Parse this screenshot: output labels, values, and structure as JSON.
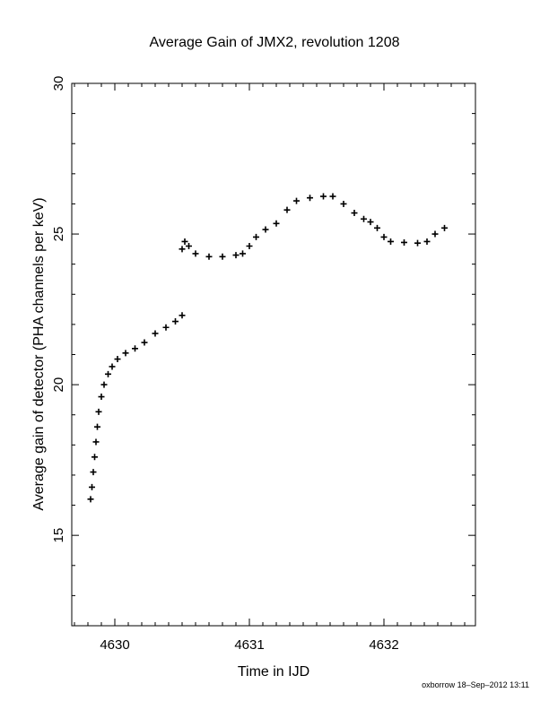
{
  "chart_data": {
    "type": "scatter",
    "title": "Average Gain of JMX2, revolution 1208",
    "xlabel": "Time in IJD",
    "ylabel": "Average gain of detector (PHA channels per keV)",
    "xlim": [
      4629.68,
      4632.68
    ],
    "ylim": [
      12,
      30
    ],
    "xticks": [
      4630,
      4631,
      4632
    ],
    "yticks": [
      15,
      20,
      25,
      30
    ],
    "marker": "plus",
    "grid": false,
    "series": [
      {
        "points": [
          [
            4629.82,
            16.2
          ],
          [
            4629.83,
            16.6
          ],
          [
            4629.84,
            17.1
          ],
          [
            4629.85,
            17.6
          ],
          [
            4629.86,
            18.1
          ],
          [
            4629.87,
            18.6
          ],
          [
            4629.88,
            19.1
          ],
          [
            4629.9,
            19.6
          ],
          [
            4629.92,
            20.0
          ],
          [
            4629.95,
            20.35
          ],
          [
            4629.98,
            20.6
          ],
          [
            4630.02,
            20.85
          ],
          [
            4630.08,
            21.05
          ],
          [
            4630.15,
            21.2
          ],
          [
            4630.22,
            21.4
          ],
          [
            4630.3,
            21.7
          ],
          [
            4630.38,
            21.9
          ],
          [
            4630.45,
            22.1
          ],
          [
            4630.5,
            22.3
          ],
          [
            4630.5,
            24.5
          ],
          [
            4630.52,
            24.75
          ],
          [
            4630.55,
            24.6
          ],
          [
            4630.6,
            24.35
          ],
          [
            4630.7,
            24.25
          ],
          [
            4630.8,
            24.25
          ],
          [
            4630.9,
            24.3
          ],
          [
            4630.95,
            24.35
          ],
          [
            4631.0,
            24.6
          ],
          [
            4631.05,
            24.9
          ],
          [
            4631.12,
            25.15
          ],
          [
            4631.2,
            25.35
          ],
          [
            4631.28,
            25.8
          ],
          [
            4631.35,
            26.1
          ],
          [
            4631.45,
            26.2
          ],
          [
            4631.55,
            26.25
          ],
          [
            4631.62,
            26.25
          ],
          [
            4631.7,
            26.0
          ],
          [
            4631.78,
            25.7
          ],
          [
            4631.85,
            25.5
          ],
          [
            4631.9,
            25.4
          ],
          [
            4631.95,
            25.2
          ],
          [
            4632.0,
            24.9
          ],
          [
            4632.05,
            24.75
          ],
          [
            4632.15,
            24.72
          ],
          [
            4632.25,
            24.7
          ],
          [
            4632.32,
            24.75
          ],
          [
            4632.38,
            25.0
          ],
          [
            4632.45,
            25.2
          ]
        ]
      }
    ]
  },
  "footer": {
    "credit": "oxborrow 18–Sep–2012 13:11"
  }
}
